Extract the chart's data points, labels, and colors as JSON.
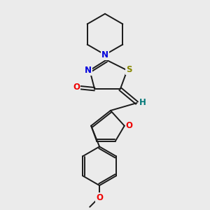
{
  "bg_color": "#ebebeb",
  "bond_color": "#1a1a1a",
  "N_color": "#0000dd",
  "S_color": "#888800",
  "O_color": "#ee0000",
  "H_color": "#007777",
  "font_size_atom": 8.5,
  "line_width": 1.4,
  "figsize": [
    3.0,
    3.0
  ],
  "dpi": 100,
  "xlim": [
    0.6,
    2.4
  ],
  "ylim": [
    0.1,
    3.1
  ]
}
